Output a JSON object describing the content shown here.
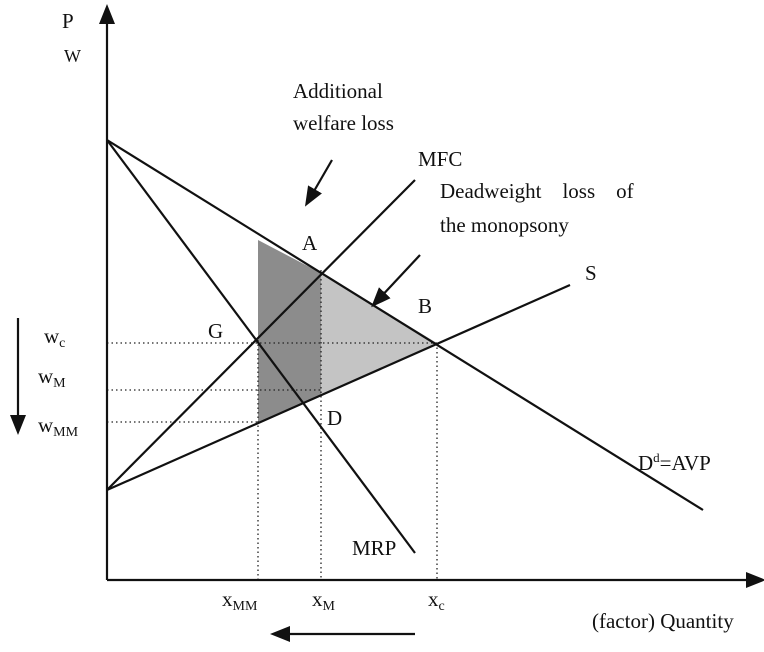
{
  "axes": {
    "y_label_top": "P",
    "y_label_bottom": "W",
    "x_label": "(factor) Quantity"
  },
  "annotations": {
    "welfare_loss": [
      "Additional",
      "welfare loss"
    ],
    "deadweight_loss": [
      "Deadweight    loss    of",
      "the monopsony"
    ]
  },
  "curves": {
    "mfc": "MFC",
    "supply": "S",
    "demand": {
      "base": "D",
      "sup": "d",
      "rest": "=AVP"
    },
    "mrp": "MRP"
  },
  "points": {
    "a": "A",
    "b": "B",
    "g": "G",
    "d": "D"
  },
  "wages": [
    {
      "base": "w",
      "sub": "c"
    },
    {
      "base": "w",
      "sub": "M"
    },
    {
      "base": "w",
      "sub": "MM"
    }
  ],
  "quantities": [
    {
      "base": "x",
      "sub": "MM"
    },
    {
      "base": "x",
      "sub": "M"
    },
    {
      "base": "x",
      "sub": "c"
    }
  ]
}
